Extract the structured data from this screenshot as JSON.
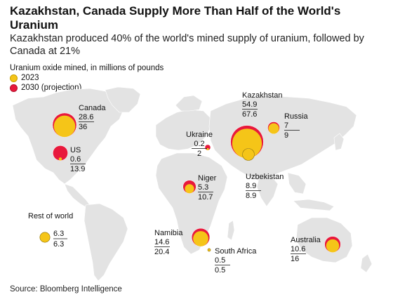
{
  "header": {
    "title": "Kazakhstan, Canada Supply More Than Half of the World's Uranium",
    "subtitle": "Kazakhstan produced 40% of the world's mined supply of uranium, followed by Canada at 21%"
  },
  "legend": {
    "title": "Uranium oxide mined, in millions of pounds",
    "items": [
      {
        "label": "2023",
        "color": "#f5c518"
      },
      {
        "label": "2030 (projection)",
        "color": "#e8193c"
      }
    ]
  },
  "colors": {
    "y2023": "#f5c518",
    "y2030": "#e8193c",
    "land": "#e3e3e3"
  },
  "countries": [
    {
      "name": "Canada",
      "value_2023": "28.6",
      "value_2030": "36"
    },
    {
      "name": "US",
      "value_2023": "0.6",
      "value_2030": "13.9"
    },
    {
      "name": "Kazakhstan",
      "value_2023": "54.9",
      "value_2030": "67.6"
    },
    {
      "name": "Russia",
      "value_2023": "7",
      "value_2030": "9"
    },
    {
      "name": "Ukraine",
      "value_2023": "0.2",
      "value_2030": "2"
    },
    {
      "name": "Uzbekistan",
      "value_2023": "8.9",
      "value_2030": "8.9"
    },
    {
      "name": "Niger",
      "value_2023": "5.3",
      "value_2030": "10.7"
    },
    {
      "name": "Rest of world",
      "value_2023": "6.3",
      "value_2030": "6.3"
    },
    {
      "name": "Namibia",
      "value_2023": "14.6",
      "value_2030": "20.4"
    },
    {
      "name": "South Africa",
      "value_2023": "0.5",
      "value_2030": "0.5"
    },
    {
      "name": "Australia",
      "value_2023": "10.6",
      "value_2030": "16"
    }
  ],
  "source": "Source: Bloomberg Intelligence"
}
